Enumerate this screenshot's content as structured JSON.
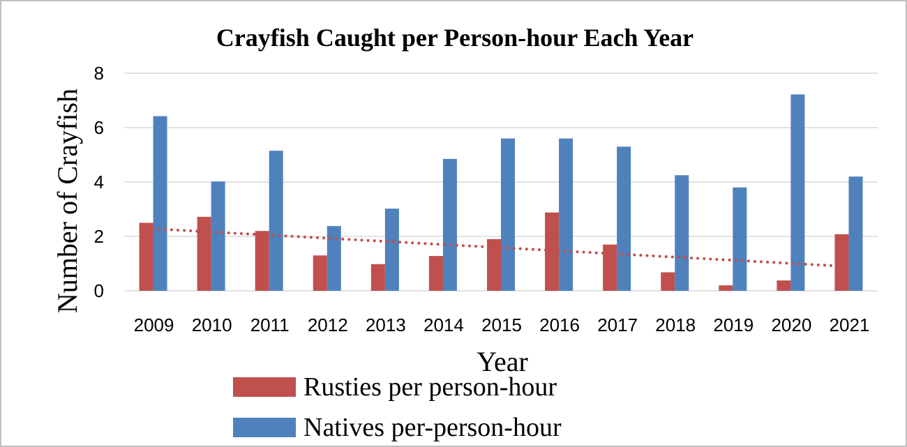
{
  "chart_data": {
    "type": "bar",
    "title": "Crayfish Caught per Person-hour Each Year",
    "xlabel": "Year",
    "ylabel": "Number of Crayfish",
    "ylim": [
      0,
      8
    ],
    "yticks": [
      0,
      2,
      4,
      6,
      8
    ],
    "grid": true,
    "legend_position": "bottom",
    "categories": [
      "2009",
      "2010",
      "2011",
      "2012",
      "2013",
      "2014",
      "2015",
      "2016",
      "2017",
      "2018",
      "2019",
      "2020",
      "2021"
    ],
    "series": [
      {
        "name": "Rusties per person-hour",
        "color": "#c0504d",
        "values": [
          2.5,
          2.72,
          2.2,
          1.3,
          0.98,
          1.28,
          1.9,
          2.88,
          1.7,
          0.68,
          0.2,
          0.38,
          2.08
        ]
      },
      {
        "name": "Natives per-person-hour",
        "color": "#4f81bd",
        "values": [
          6.42,
          4.02,
          5.15,
          2.38,
          3.02,
          4.85,
          5.6,
          5.6,
          5.3,
          4.25,
          3.8,
          7.22,
          4.2
        ]
      }
    ],
    "trendline": {
      "series": "Rusties per person-hour",
      "type": "linear",
      "style": "dotted",
      "color": "#c0504d"
    }
  }
}
